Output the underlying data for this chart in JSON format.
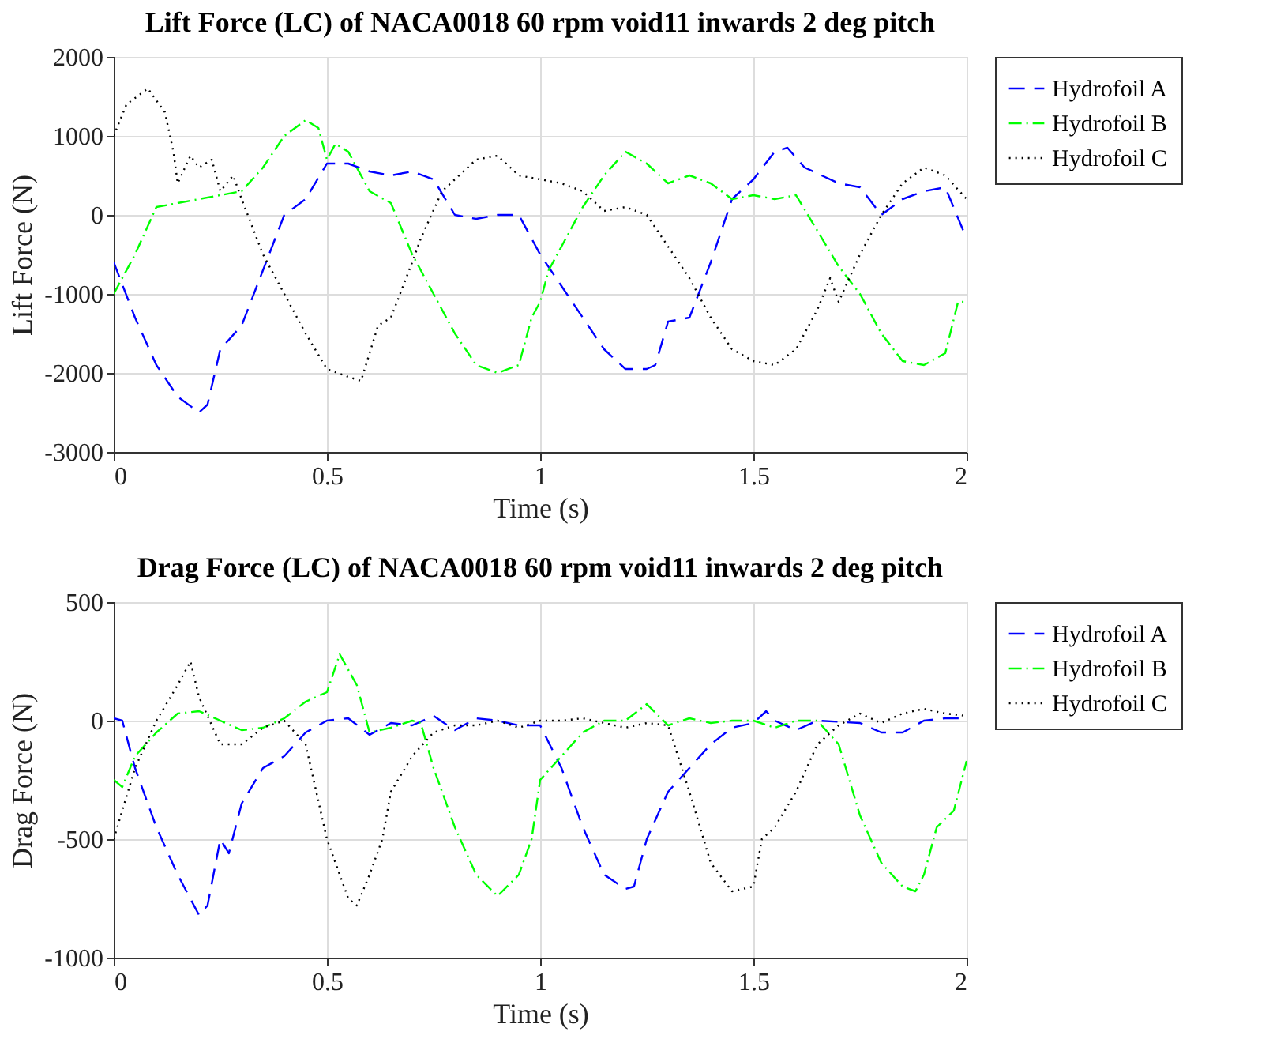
{
  "chart_data": [
    {
      "type": "line",
      "title": "Lift Force (LC) of NACA0018 60 rpm void11 inwards 2 deg pitch",
      "xlabel": "Time (s)",
      "ylabel": "Lift Force (N)",
      "xlim": [
        0,
        2
      ],
      "xticks": [
        0,
        0.5,
        1,
        1.5,
        2
      ],
      "ylim": [
        -3000,
        2000
      ],
      "yticks": [
        -3000,
        -2000,
        -1000,
        0,
        1000,
        2000
      ],
      "grid": true,
      "legend": "right",
      "marker": "none",
      "series": [
        {
          "name": "Hydrofoil A",
          "color": "#0000ff",
          "line_style": "dashed",
          "x": [
            0,
            0.05,
            0.1,
            0.15,
            0.2,
            0.22,
            0.25,
            0.3,
            0.35,
            0.4,
            0.45,
            0.5,
            0.55,
            0.6,
            0.65,
            0.7,
            0.75,
            0.8,
            0.85,
            0.9,
            0.95,
            1.0,
            1.05,
            1.1,
            1.15,
            1.2,
            1.25,
            1.27,
            1.3,
            1.35,
            1.4,
            1.45,
            1.5,
            1.55,
            1.58,
            1.62,
            1.7,
            1.75,
            1.8,
            1.85,
            1.9,
            1.95,
            2.0
          ],
          "values": [
            -600,
            -1300,
            -1900,
            -2300,
            -2500,
            -2400,
            -1700,
            -1400,
            -700,
            0,
            200,
            650,
            650,
            550,
            500,
            550,
            450,
            0,
            -50,
            0,
            0,
            -500,
            -900,
            -1300,
            -1700,
            -1950,
            -1950,
            -1900,
            -1350,
            -1300,
            -600,
            200,
            450,
            800,
            850,
            600,
            400,
            350,
            0,
            200,
            300,
            350,
            -300
          ]
        },
        {
          "name": "Hydrofoil B",
          "color": "#00ff00",
          "line_style": "dashdot",
          "x": [
            0,
            0.05,
            0.1,
            0.15,
            0.2,
            0.25,
            0.3,
            0.35,
            0.4,
            0.45,
            0.48,
            0.5,
            0.52,
            0.55,
            0.6,
            0.65,
            0.7,
            0.75,
            0.8,
            0.85,
            0.9,
            0.95,
            0.98,
            1.0,
            1.02,
            1.05,
            1.1,
            1.15,
            1.2,
            1.25,
            1.3,
            1.35,
            1.4,
            1.45,
            1.5,
            1.55,
            1.6,
            1.65,
            1.7,
            1.75,
            1.8,
            1.85,
            1.9,
            1.95,
            1.98,
            2.0
          ],
          "values": [
            -1000,
            -500,
            100,
            150,
            200,
            250,
            300,
            600,
            1000,
            1200,
            1100,
            700,
            900,
            800,
            300,
            150,
            -500,
            -1000,
            -1500,
            -1900,
            -2000,
            -1900,
            -1300,
            -1100,
            -700,
            -400,
            100,
            500,
            800,
            650,
            400,
            500,
            400,
            200,
            250,
            200,
            250,
            -200,
            -650,
            -1000,
            -1500,
            -1850,
            -1900,
            -1750,
            -1100,
            -1100
          ]
        },
        {
          "name": "Hydrofoil C",
          "color": "#000000",
          "line_style": "dotted",
          "x": [
            0,
            0.03,
            0.08,
            0.12,
            0.14,
            0.15,
            0.18,
            0.2,
            0.23,
            0.25,
            0.28,
            0.3,
            0.35,
            0.4,
            0.45,
            0.5,
            0.55,
            0.58,
            0.62,
            0.65,
            0.7,
            0.72,
            0.77,
            0.8,
            0.85,
            0.9,
            0.95,
            1.0,
            1.05,
            1.1,
            1.15,
            1.2,
            1.25,
            1.3,
            1.35,
            1.4,
            1.45,
            1.5,
            1.55,
            1.6,
            1.65,
            1.68,
            1.7,
            1.75,
            1.8,
            1.85,
            1.9,
            1.95,
            2.0
          ],
          "values": [
            1000,
            1400,
            1600,
            1300,
            800,
            400,
            750,
            600,
            700,
            300,
            500,
            200,
            -500,
            -1000,
            -1500,
            -1950,
            -2050,
            -2100,
            -1400,
            -1300,
            -600,
            -300,
            300,
            450,
            700,
            750,
            500,
            450,
            400,
            300,
            50,
            100,
            0,
            -400,
            -800,
            -1300,
            -1700,
            -1850,
            -1900,
            -1700,
            -1200,
            -800,
            -1100,
            -500,
            0,
            400,
            600,
            500,
            200
          ]
        }
      ]
    },
    {
      "type": "line",
      "title": "Drag Force (LC) of NACA0018 60 rpm void11 inwards 2 deg pitch",
      "xlabel": "Time (s)",
      "ylabel": "Drag Force (N)",
      "xlim": [
        0,
        2
      ],
      "xticks": [
        0,
        0.5,
        1,
        1.5,
        2
      ],
      "ylim": [
        -1000,
        500
      ],
      "yticks": [
        -1000,
        -500,
        0,
        500
      ],
      "grid": true,
      "legend": "right",
      "marker": "none",
      "series": [
        {
          "name": "Hydrofoil A",
          "color": "#0000ff",
          "line_style": "dashed",
          "x": [
            0,
            0.02,
            0.05,
            0.1,
            0.15,
            0.2,
            0.22,
            0.25,
            0.27,
            0.3,
            0.35,
            0.4,
            0.45,
            0.5,
            0.55,
            0.6,
            0.65,
            0.7,
            0.75,
            0.8,
            0.85,
            0.9,
            0.95,
            1.0,
            1.05,
            1.1,
            1.15,
            1.2,
            1.22,
            1.25,
            1.3,
            1.35,
            1.4,
            1.45,
            1.5,
            1.53,
            1.55,
            1.6,
            1.65,
            1.75,
            1.8,
            1.85,
            1.9,
            1.95,
            2.0
          ],
          "values": [
            10,
            0,
            -200,
            -450,
            -650,
            -820,
            -780,
            -500,
            -560,
            -350,
            -200,
            -150,
            -50,
            0,
            10,
            -60,
            -10,
            -20,
            20,
            -40,
            10,
            0,
            -20,
            -20,
            -200,
            -450,
            -650,
            -710,
            -700,
            -500,
            -300,
            -200,
            -100,
            -30,
            -10,
            40,
            0,
            -40,
            0,
            -10,
            -50,
            -50,
            0,
            10,
            10
          ]
        },
        {
          "name": "Hydrofoil B",
          "color": "#00ff00",
          "line_style": "dashdot",
          "x": [
            0,
            0.02,
            0.05,
            0.1,
            0.15,
            0.2,
            0.25,
            0.3,
            0.35,
            0.4,
            0.45,
            0.5,
            0.53,
            0.57,
            0.6,
            0.65,
            0.7,
            0.72,
            0.75,
            0.8,
            0.85,
            0.9,
            0.95,
            0.98,
            1.0,
            1.05,
            1.1,
            1.15,
            1.2,
            1.25,
            1.3,
            1.35,
            1.4,
            1.45,
            1.5,
            1.55,
            1.6,
            1.65,
            1.7,
            1.75,
            1.8,
            1.85,
            1.88,
            1.9,
            1.93,
            1.97,
            2.0
          ],
          "values": [
            -250,
            -280,
            -150,
            -50,
            30,
            40,
            0,
            -40,
            -30,
            10,
            80,
            120,
            280,
            150,
            -50,
            -30,
            0,
            -10,
            -200,
            -450,
            -650,
            -740,
            -650,
            -500,
            -250,
            -150,
            -50,
            0,
            0,
            70,
            -20,
            10,
            -10,
            0,
            0,
            -30,
            0,
            0,
            -100,
            -400,
            -600,
            -700,
            -720,
            -650,
            -450,
            -380,
            -170
          ]
        },
        {
          "name": "Hydrofoil C",
          "color": "#000000",
          "line_style": "dotted",
          "x": [
            0,
            0.05,
            0.1,
            0.15,
            0.18,
            0.2,
            0.25,
            0.3,
            0.35,
            0.4,
            0.45,
            0.5,
            0.55,
            0.57,
            0.6,
            0.63,
            0.65,
            0.7,
            0.75,
            0.8,
            0.85,
            0.9,
            0.95,
            1.0,
            1.05,
            1.1,
            1.15,
            1.2,
            1.25,
            1.3,
            1.35,
            1.4,
            1.45,
            1.5,
            1.52,
            1.55,
            1.6,
            1.65,
            1.7,
            1.75,
            1.8,
            1.85,
            1.9,
            1.95,
            2.0
          ],
          "values": [
            -500,
            -200,
            0,
            150,
            250,
            100,
            -100,
            -100,
            -30,
            0,
            -100,
            -500,
            -750,
            -780,
            -650,
            -500,
            -300,
            -150,
            -50,
            -20,
            -20,
            0,
            -30,
            0,
            0,
            10,
            -10,
            -30,
            -10,
            -20,
            -300,
            -600,
            -720,
            -700,
            -500,
            -450,
            -300,
            -100,
            -20,
            30,
            -10,
            30,
            50,
            30,
            20
          ]
        }
      ]
    }
  ]
}
